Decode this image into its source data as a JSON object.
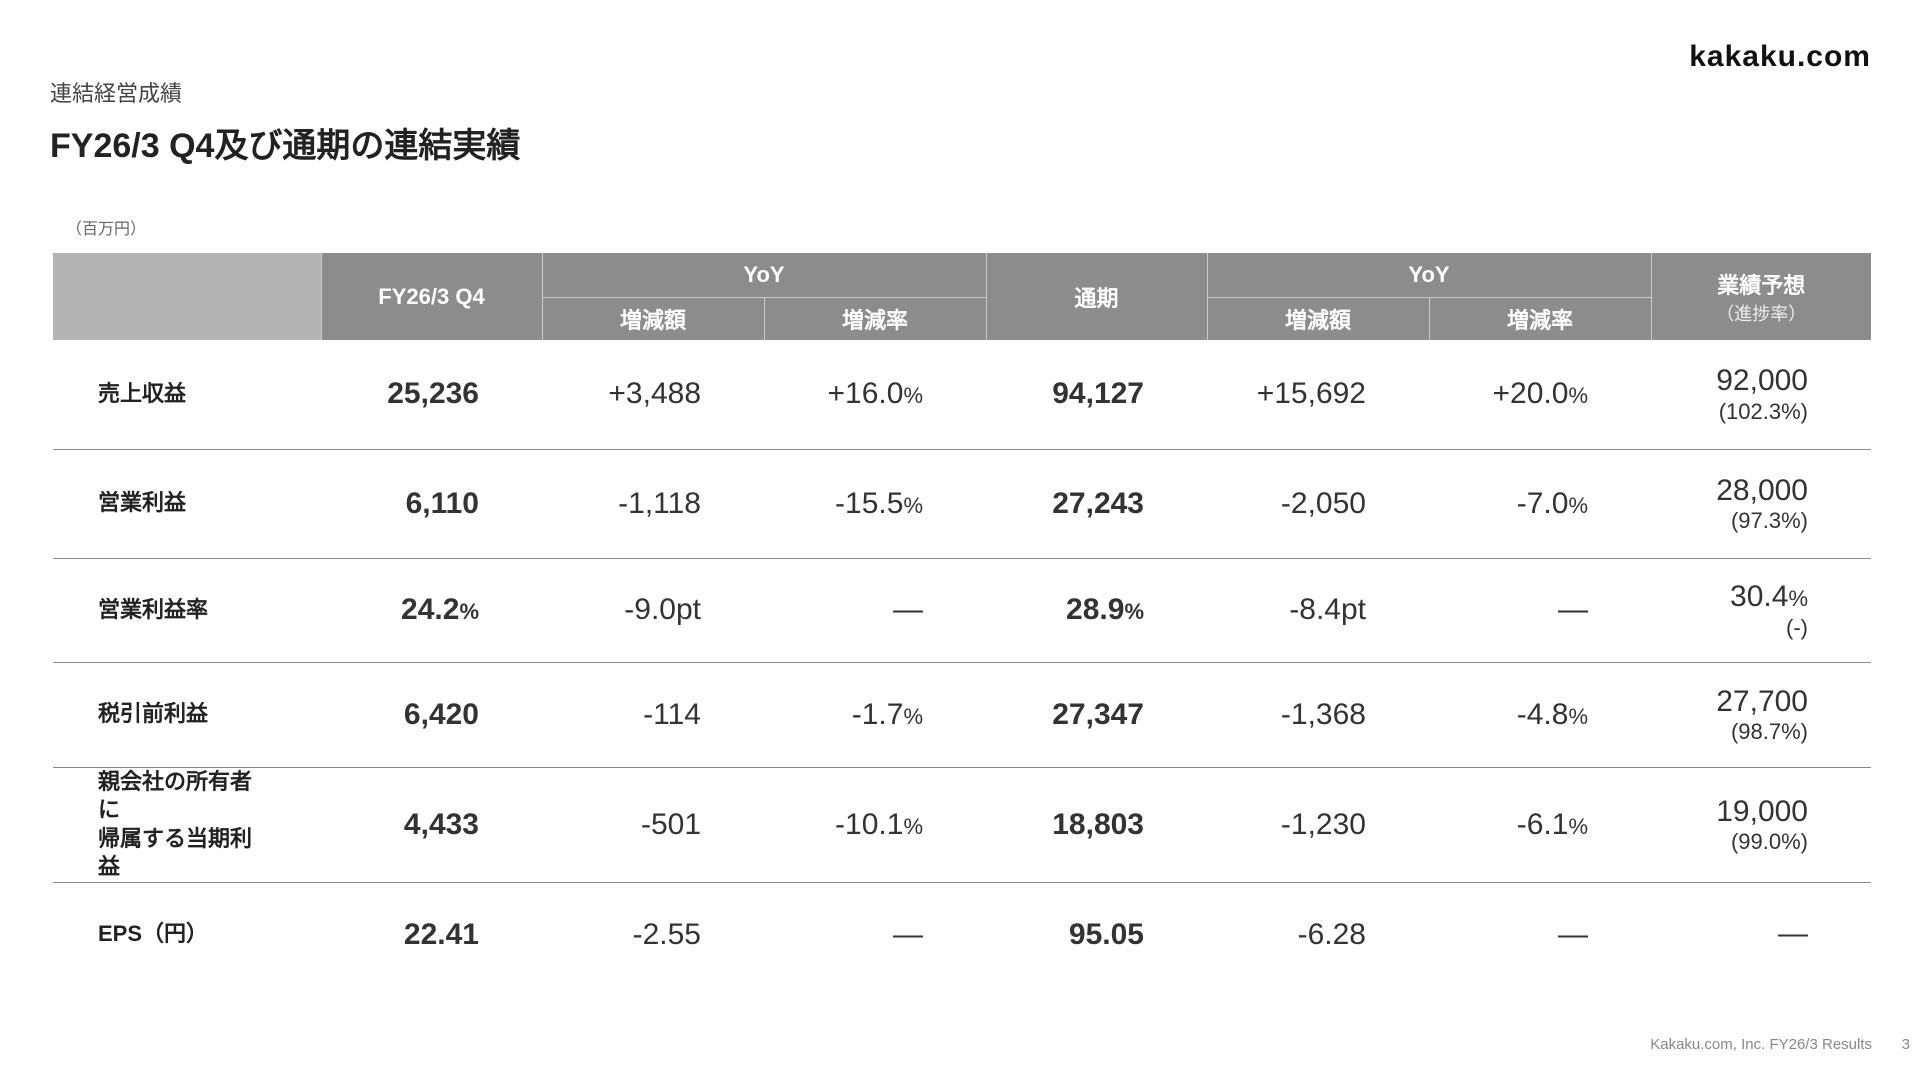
{
  "header": {
    "category": "連結経営成績",
    "title": "FY26/3 Q4及び通期の連結実績",
    "logo": "kakaku.com"
  },
  "table": {
    "unit": "（百万円）",
    "columns": {
      "q4": "FY26/3 Q4",
      "yoy": "YoY",
      "change": "増減額",
      "rate": "増減率",
      "full_year": "通期",
      "yoy2": "YoY",
      "change2": "増減額",
      "rate2": "増減率",
      "forecast": "業績予想",
      "progress": "（進捗率）"
    },
    "rows": [
      {
        "label": "売上収益",
        "cells": [
          "25,236",
          "+3,488",
          "+16.0%",
          "94,127",
          "+15,692",
          "+20.0%"
        ],
        "forecast": "92,000",
        "progress": "(102.3%)"
      },
      {
        "label": "営業利益",
        "cells": [
          "6,110",
          "-1,118",
          "-15.5%",
          "27,243",
          "-2,050",
          "-7.0%"
        ],
        "forecast": "28,000",
        "progress": "(97.3%)"
      },
      {
        "label": "営業利益率",
        "cells": [
          "24.2%",
          "-9.0pt",
          "—",
          "28.9%",
          "-8.4pt",
          "—"
        ],
        "forecast": "30.4%",
        "progress": "(-)"
      },
      {
        "label": "税引前利益",
        "cells": [
          "6,420",
          "-114",
          "-1.7%",
          "27,347",
          "-1,368",
          "-4.8%"
        ],
        "forecast": "27,700",
        "progress": "(98.7%)"
      },
      {
        "label": "親会社の所有者に\n帰属する当期利益",
        "cells": [
          "4,433",
          "-501",
          "-10.1%",
          "18,803",
          "-1,230",
          "-6.1%"
        ],
        "forecast": "19,000",
        "progress": "(99.0%)"
      },
      {
        "label": "EPS（円）",
        "cells": [
          "22.41",
          "-2.55",
          "—",
          "95.05",
          "-6.28",
          "—"
        ],
        "forecast": "—"
      }
    ]
  },
  "footer": {
    "text": "Kakaku.com, Inc. FY26/3 Results",
    "page": "3"
  }
}
